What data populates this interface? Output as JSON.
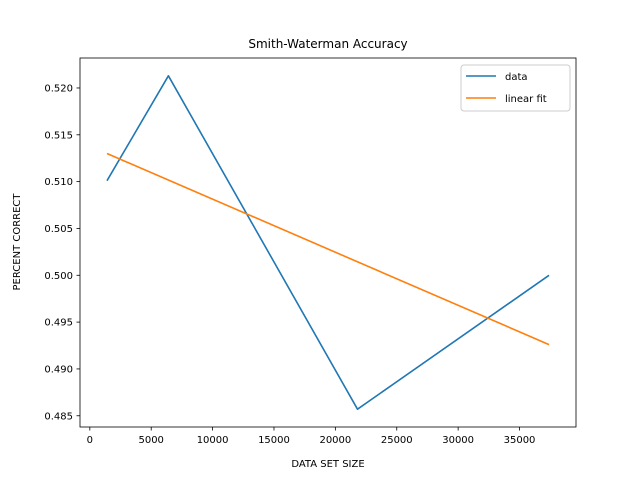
{
  "chart_data": {
    "type": "line",
    "title": "Smith-Waterman Accuracy",
    "xlabel": "DATA SET SIZE",
    "ylabel": "PERCENT CORRECT",
    "xlim": [
      -800,
      39600
    ],
    "ylim": [
      0.4838,
      0.5232
    ],
    "xticks": [
      0,
      5000,
      10000,
      15000,
      20000,
      25000,
      30000,
      35000
    ],
    "yticks": [
      0.485,
      0.49,
      0.495,
      0.5,
      0.505,
      0.51,
      0.515,
      0.52
    ],
    "ytick_decimals": 3,
    "grid": false,
    "legend_position": "top-right",
    "series": [
      {
        "name": "data",
        "color": "#1f77b4",
        "x": [
          1400,
          6400,
          21800,
          37400
        ],
        "y": [
          0.5101,
          0.5213,
          0.4857,
          0.5
        ]
      },
      {
        "name": "linear fit",
        "color": "#ff7f0e",
        "x": [
          1400,
          37400
        ],
        "y": [
          0.513,
          0.4926
        ]
      }
    ]
  }
}
